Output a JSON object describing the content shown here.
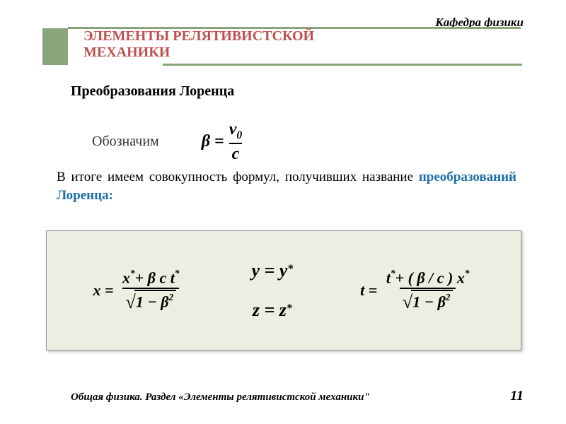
{
  "header": {
    "department": "Кафедра физики",
    "title": "ЭЛЕМЕНТЫ  РЕЛЯТИВИСТСКОЙ МЕХАНИКИ",
    "accent_color": "#c0504d",
    "bar_color": "#8aa57a"
  },
  "subtitle": "Преобразования Лоренца",
  "denote": {
    "label": "Обозначим",
    "beta": "β =",
    "num": "v",
    "num_sub": "0",
    "den": "c"
  },
  "summary": {
    "plain": "В итоге имеем совокупность формул, получивших название ",
    "emph": "преобразований Лоренца:",
    "emph_color": "#1f6fa8"
  },
  "formula_box": {
    "background": "#eeede1",
    "x": {
      "lhs": "x =",
      "num_parts": [
        "x",
        "*",
        "+ β c t",
        "*"
      ],
      "den_parts": [
        "1 − β",
        "2"
      ]
    },
    "y": {
      "lhs": "y = y",
      "star": "*"
    },
    "z": {
      "lhs": "z = z",
      "star": "*"
    },
    "t": {
      "lhs": "t =",
      "num_parts": [
        "t",
        "*",
        "+ ( β / c ) x",
        "*"
      ],
      "den_parts": [
        "1 − β",
        "2"
      ]
    }
  },
  "footer": {
    "text": "Общая физика. Раздел «Элементы релятивистской механики\"",
    "page": "11"
  }
}
